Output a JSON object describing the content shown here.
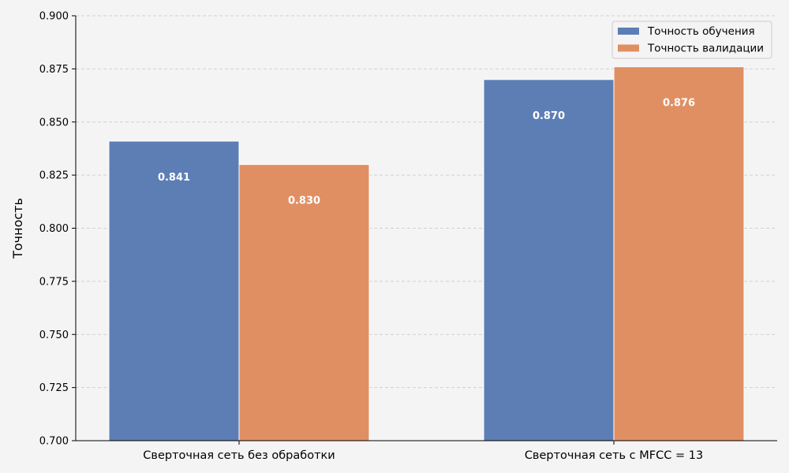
{
  "chart_data": {
    "type": "bar",
    "categories": [
      "Сверточная сеть без обработки",
      "Сверточная сеть с MFCC = 13"
    ],
    "series": [
      {
        "name": "Точность обучения",
        "values": [
          0.841,
          0.87
        ],
        "labels": [
          "0.841",
          "0.870"
        ],
        "color": "#5d7eb5"
      },
      {
        "name": "Точность валидации",
        "values": [
          0.83,
          0.876
        ],
        "labels": [
          "0.830",
          "0.876"
        ],
        "color": "#e08f63"
      }
    ],
    "title": "",
    "xlabel": "",
    "ylabel": "Точность",
    "ylim": [
      0.7,
      0.9
    ],
    "yticks": [
      0.7,
      0.725,
      0.75,
      0.775,
      0.8,
      0.825,
      0.85,
      0.875,
      0.9
    ],
    "ytick_labels": [
      "0.700",
      "0.725",
      "0.750",
      "0.775",
      "0.800",
      "0.825",
      "0.850",
      "0.875",
      "0.900"
    ],
    "grid": true,
    "legend_position": "top-right",
    "background": "#f4f4f4"
  }
}
